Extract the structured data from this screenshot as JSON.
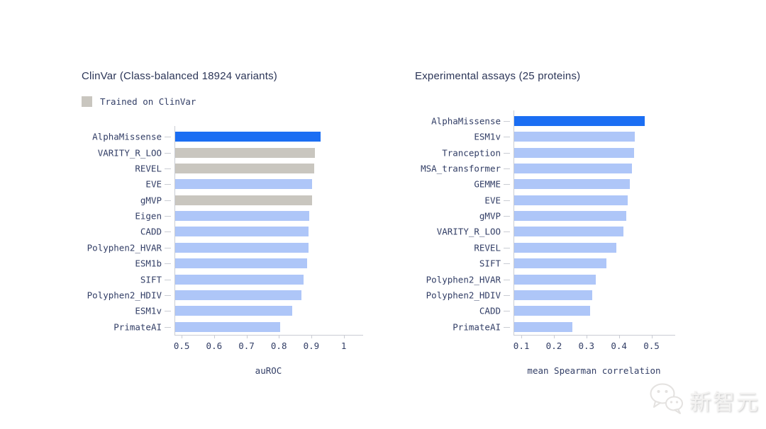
{
  "page": {
    "background": "#ffffff"
  },
  "colors": {
    "highlight_blue": "#1b6ef3",
    "default_blue": "#aec6f8",
    "trained_gray": "#c9c6bf",
    "text_navy": "#323e66",
    "title_navy": "#2b3557",
    "axis_gray": "#c9ccd3"
  },
  "watermark": {
    "icon": "wechat-icon",
    "text": "新智元"
  },
  "chart_data": [
    {
      "id": "clinvar",
      "type": "bar",
      "orientation": "horizontal",
      "title": "ClinVar (Class-balanced 18924 variants)",
      "legend": {
        "label": "Trained on ClinVar",
        "swatch_style": "trained"
      },
      "xlabel": "auROC",
      "xlim": [
        0.48,
        1.06
      ],
      "xticks": [
        0.5,
        0.6,
        0.7,
        0.8,
        0.9,
        1.0
      ],
      "xtick_labels": [
        "0.5",
        "0.6",
        "0.7",
        "0.8",
        "0.9",
        "1"
      ],
      "grid": false,
      "categories": [
        "AlphaMissense",
        "VARITY_R_LOO",
        "REVEL",
        "EVE",
        "gMVP",
        "Eigen",
        "CADD",
        "Polyphen2_HVAR",
        "ESM1b",
        "SIFT",
        "Polyphen2_HDIV",
        "ESM1v",
        "PrimateAI"
      ],
      "values": [
        0.929,
        0.912,
        0.909,
        0.903,
        0.902,
        0.894,
        0.892,
        0.891,
        0.888,
        0.877,
        0.87,
        0.841,
        0.804
      ],
      "bar_styles": [
        "highlight",
        "trained",
        "trained",
        "default",
        "trained",
        "default",
        "default",
        "default",
        "default",
        "default",
        "default",
        "default",
        "default"
      ]
    },
    {
      "id": "assays",
      "type": "bar",
      "orientation": "horizontal",
      "title": "Experimental assays (25 proteins)",
      "xlabel": "mean Spearman correlation",
      "xlim": [
        0.078,
        0.573
      ],
      "xticks": [
        0.1,
        0.2,
        0.3,
        0.4,
        0.5
      ],
      "xtick_labels": [
        "0.1",
        "0.2",
        "0.3",
        "0.4",
        "0.5"
      ],
      "grid": false,
      "categories": [
        "AlphaMissense",
        "ESM1v",
        "Tranception",
        "MSA_transformer",
        "GEMME",
        "EVE",
        "gMVP",
        "VARITY_R_LOO",
        "REVEL",
        "SIFT",
        "Polyphen2_HVAR",
        "Polyphen2_HDIV",
        "CADD",
        "PrimateAI"
      ],
      "values": [
        0.479,
        0.448,
        0.446,
        0.44,
        0.434,
        0.427,
        0.423,
        0.414,
        0.391,
        0.361,
        0.329,
        0.317,
        0.311,
        0.256
      ],
      "bar_styles": [
        "highlight",
        "default",
        "default",
        "default",
        "default",
        "default",
        "default",
        "default",
        "default",
        "default",
        "default",
        "default",
        "default",
        "default"
      ]
    }
  ]
}
